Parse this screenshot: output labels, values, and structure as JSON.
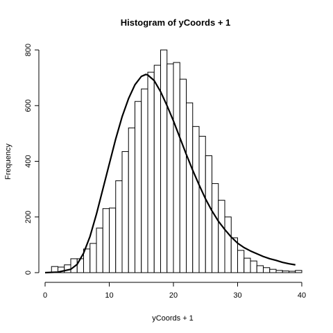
{
  "chart_data": {
    "type": "bar",
    "title": "Histogram of yCoords + 1",
    "xlabel": "yCoords + 1",
    "ylabel": "Frequency",
    "xlim": [
      0,
      40
    ],
    "ylim": [
      0,
      800
    ],
    "x_ticks": [
      0,
      10,
      20,
      30,
      40
    ],
    "y_ticks": [
      0,
      200,
      400,
      600,
      800
    ],
    "bin_width": 1,
    "bins": [
      {
        "x0": 1,
        "x1": 2,
        "count": 22
      },
      {
        "x0": 2,
        "x1": 3,
        "count": 20
      },
      {
        "x0": 3,
        "x1": 4,
        "count": 28
      },
      {
        "x0": 4,
        "x1": 5,
        "count": 50
      },
      {
        "x0": 5,
        "x1": 6,
        "count": 50
      },
      {
        "x0": 6,
        "x1": 7,
        "count": 85
      },
      {
        "x0": 7,
        "x1": 8,
        "count": 105
      },
      {
        "x0": 8,
        "x1": 9,
        "count": 160
      },
      {
        "x0": 9,
        "x1": 10,
        "count": 230
      },
      {
        "x0": 10,
        "x1": 11,
        "count": 232
      },
      {
        "x0": 11,
        "x1": 12,
        "count": 330
      },
      {
        "x0": 12,
        "x1": 13,
        "count": 435
      },
      {
        "x0": 13,
        "x1": 14,
        "count": 520
      },
      {
        "x0": 14,
        "x1": 15,
        "count": 615
      },
      {
        "x0": 15,
        "x1": 16,
        "count": 660
      },
      {
        "x0": 16,
        "x1": 17,
        "count": 720
      },
      {
        "x0": 17,
        "x1": 18,
        "count": 745
      },
      {
        "x0": 18,
        "x1": 19,
        "count": 800
      },
      {
        "x0": 19,
        "x1": 20,
        "count": 750
      },
      {
        "x0": 20,
        "x1": 21,
        "count": 755
      },
      {
        "x0": 21,
        "x1": 22,
        "count": 695
      },
      {
        "x0": 22,
        "x1": 23,
        "count": 610
      },
      {
        "x0": 23,
        "x1": 24,
        "count": 525
      },
      {
        "x0": 24,
        "x1": 25,
        "count": 490
      },
      {
        "x0": 25,
        "x1": 26,
        "count": 420
      },
      {
        "x0": 26,
        "x1": 27,
        "count": 320
      },
      {
        "x0": 27,
        "x1": 28,
        "count": 260
      },
      {
        "x0": 28,
        "x1": 29,
        "count": 200
      },
      {
        "x0": 29,
        "x1": 30,
        "count": 125
      },
      {
        "x0": 30,
        "x1": 31,
        "count": 80
      },
      {
        "x0": 31,
        "x1": 32,
        "count": 52
      },
      {
        "x0": 32,
        "x1": 33,
        "count": 42
      },
      {
        "x0": 33,
        "x1": 34,
        "count": 25
      },
      {
        "x0": 34,
        "x1": 35,
        "count": 18
      },
      {
        "x0": 35,
        "x1": 36,
        "count": 12
      },
      {
        "x0": 36,
        "x1": 37,
        "count": 8
      },
      {
        "x0": 37,
        "x1": 38,
        "count": 6
      },
      {
        "x0": 38,
        "x1": 39,
        "count": 5
      },
      {
        "x0": 39,
        "x1": 40,
        "count": 8
      }
    ],
    "curve": {
      "type": "line",
      "x": [
        0,
        2,
        4,
        5,
        6,
        7,
        8,
        9,
        10,
        11,
        12,
        13,
        14,
        15,
        15.7,
        16,
        17,
        18,
        19,
        20,
        21,
        22,
        23,
        24,
        25,
        26,
        27,
        28,
        29,
        30,
        31,
        32,
        33,
        34,
        35,
        36,
        37,
        38,
        39
      ],
      "y": [
        0,
        2,
        12,
        30,
        70,
        130,
        210,
        300,
        390,
        480,
        560,
        625,
        675,
        705,
        712,
        710,
        690,
        650,
        600,
        545,
        485,
        425,
        368,
        315,
        265,
        222,
        185,
        155,
        128,
        106,
        90,
        78,
        68,
        58,
        50,
        44,
        37,
        32,
        28
      ]
    },
    "grid": false,
    "legend": "none"
  }
}
